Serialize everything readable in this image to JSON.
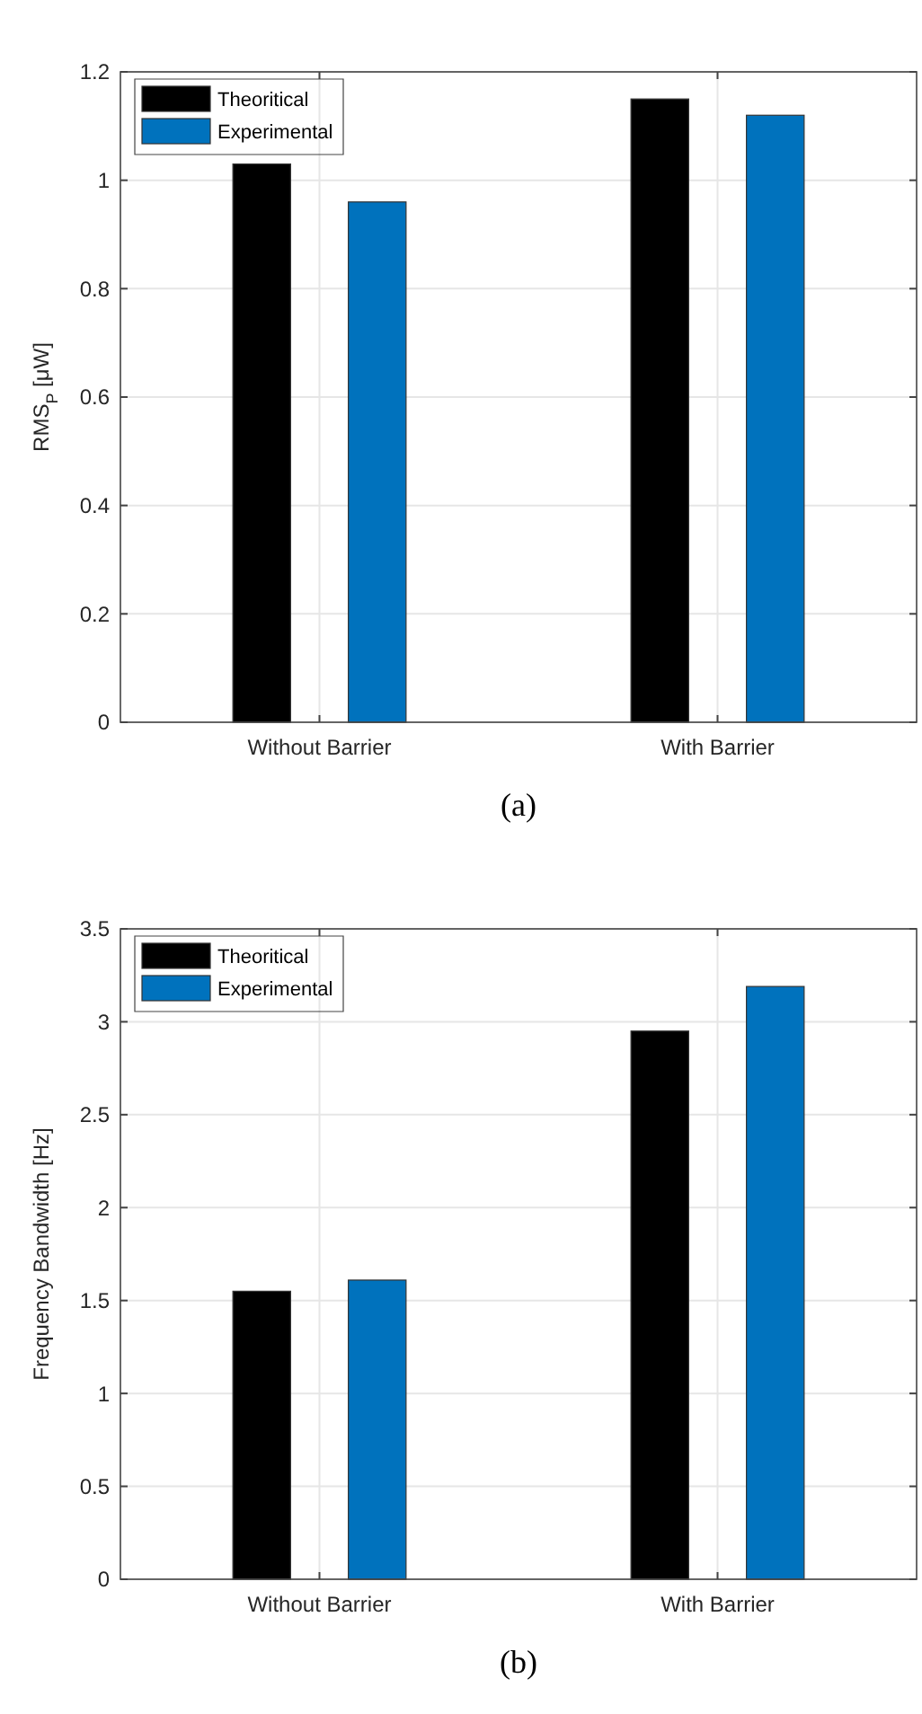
{
  "chart_data": [
    {
      "type": "bar",
      "title": "(a)",
      "ylabel": "RMS$_{P}$ [μW]",
      "categories": [
        "Without Barrier",
        "With Barrier"
      ],
      "series": [
        {
          "name": "Theoritical",
          "color": "#000000",
          "values": [
            1.03,
            1.15
          ]
        },
        {
          "name": "Experimental",
          "color": "#0072bd",
          "values": [
            0.96,
            1.12
          ]
        }
      ],
      "ylim": [
        0,
        1.2
      ],
      "yticks": [
        0,
        0.2,
        0.4,
        0.6,
        0.8,
        1,
        1.2
      ],
      "grid": true,
      "legend": "top left"
    },
    {
      "type": "bar",
      "title": "(b)",
      "ylabel": "Frequency Bandwidth [Hz]",
      "categories": [
        "Without Barrier",
        "With Barrier"
      ],
      "series": [
        {
          "name": "Theoritical",
          "color": "#000000",
          "values": [
            1.55,
            2.95
          ]
        },
        {
          "name": "Experimental",
          "color": "#0072bd",
          "values": [
            1.61,
            3.19
          ]
        }
      ],
      "ylim": [
        0,
        3.5
      ],
      "yticks": [
        0,
        0.5,
        1,
        1.5,
        2,
        2.5,
        3,
        3.5
      ],
      "grid": true,
      "legend": "top left"
    }
  ]
}
